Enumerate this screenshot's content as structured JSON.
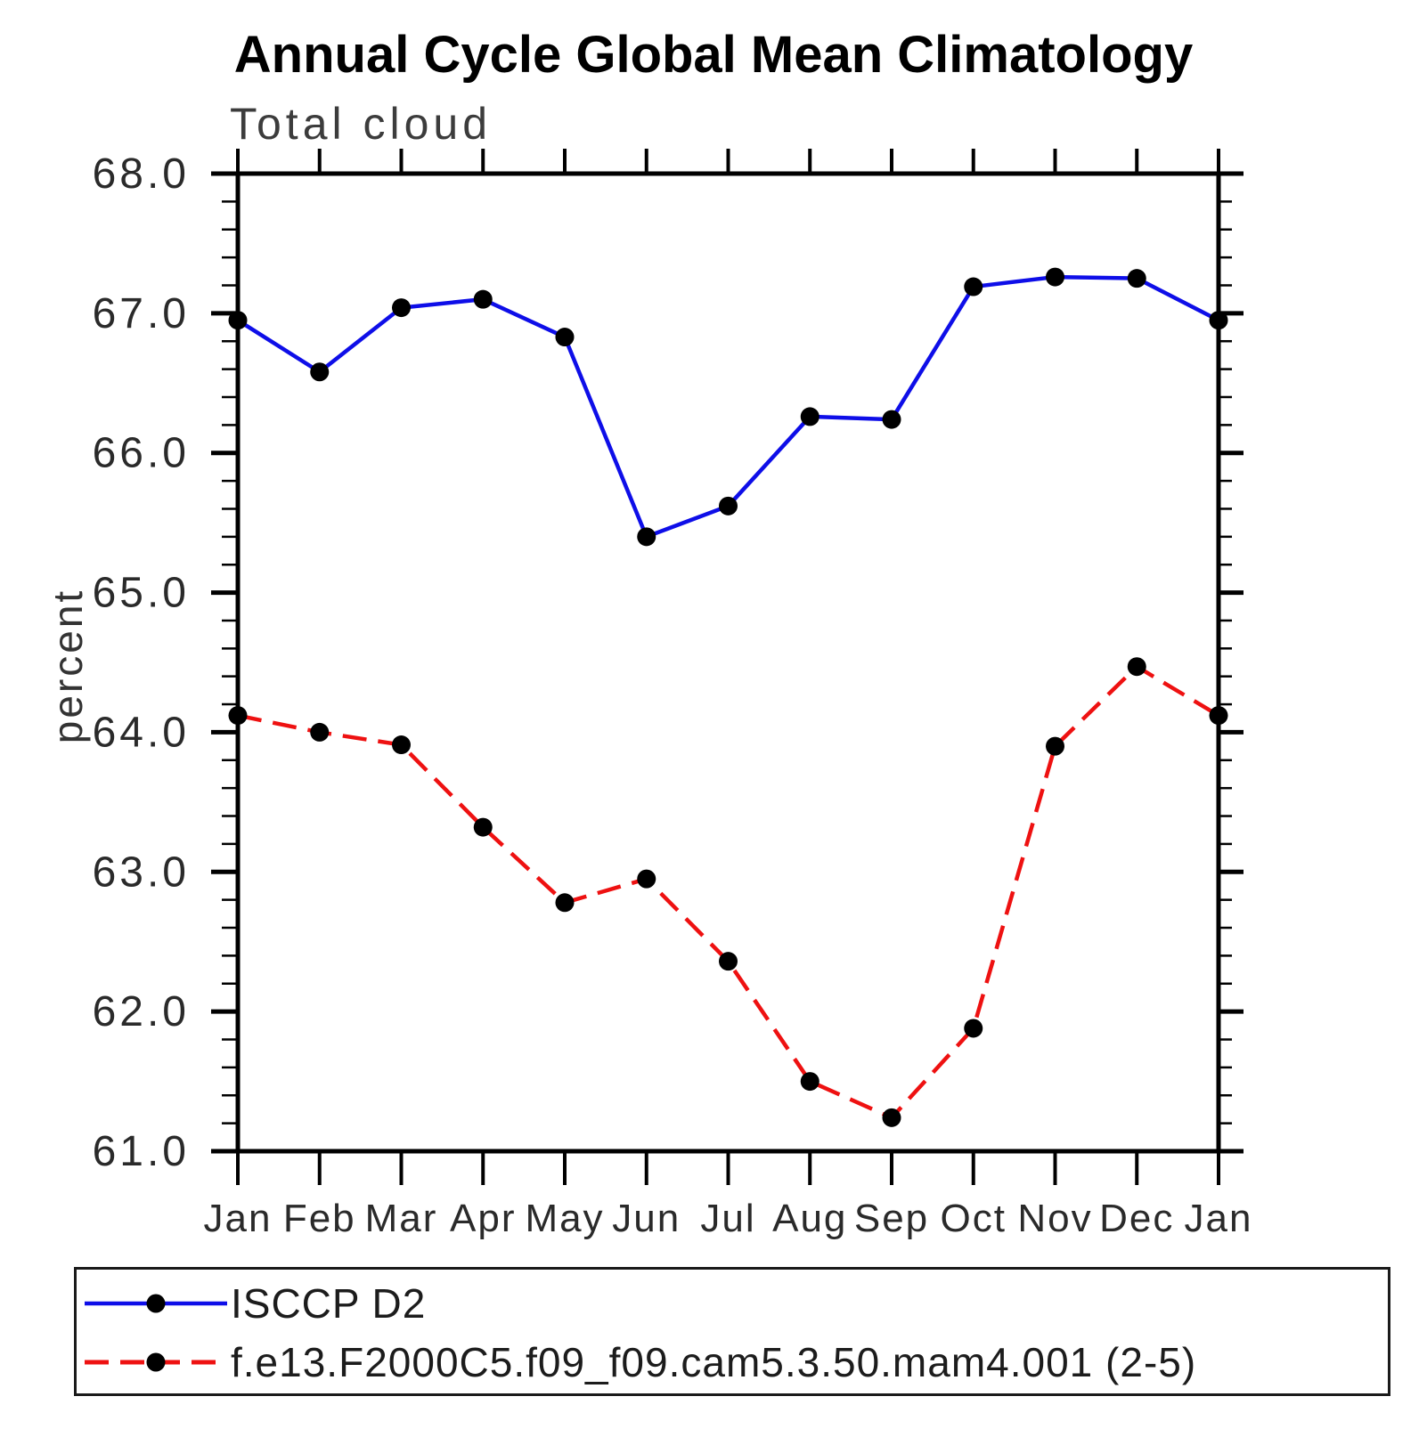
{
  "chart_data": {
    "type": "line",
    "title": "Annual Cycle Global Mean Climatology",
    "subtitle": "Total cloud",
    "ylabel": "percent",
    "xlabel": "",
    "categories": [
      "Jan",
      "Feb",
      "Mar",
      "Apr",
      "May",
      "Jun",
      "Jul",
      "Aug",
      "Sep",
      "Oct",
      "Nov",
      "Dec",
      "Jan"
    ],
    "ylim": [
      61.0,
      68.0
    ],
    "ytick_labels": [
      "68.0",
      "67.0",
      "66.0",
      "65.0",
      "64.0",
      "63.0",
      "62.0",
      "61.0"
    ],
    "ytick_values": [
      68.0,
      67.0,
      66.0,
      65.0,
      64.0,
      63.0,
      62.0,
      61.0
    ],
    "ytick_minor_step": 0.2,
    "grid": false,
    "legend_position": "bottom-left-box",
    "axis_color": "#000000",
    "text_color": "#2a2a2a",
    "series": [
      {
        "name": "ISCCP D2",
        "color": "#0e0ee8",
        "line_style": "solid",
        "marker": "filled-circle",
        "marker_color": "#000000",
        "values": [
          66.95,
          66.58,
          67.04,
          67.1,
          66.83,
          65.4,
          65.62,
          66.26,
          66.24,
          67.19,
          67.26,
          67.25,
          66.95
        ]
      },
      {
        "name": "f.e13.F2000C5.f09_f09.cam5.3.50.mam4.001 (2-5)",
        "color": "#ee1111",
        "line_style": "dashed",
        "marker": "filled-circle",
        "marker_color": "#000000",
        "values": [
          64.12,
          64.0,
          63.91,
          63.32,
          62.78,
          62.95,
          62.36,
          61.5,
          61.24,
          61.88,
          63.9,
          64.47,
          64.12
        ]
      }
    ]
  }
}
